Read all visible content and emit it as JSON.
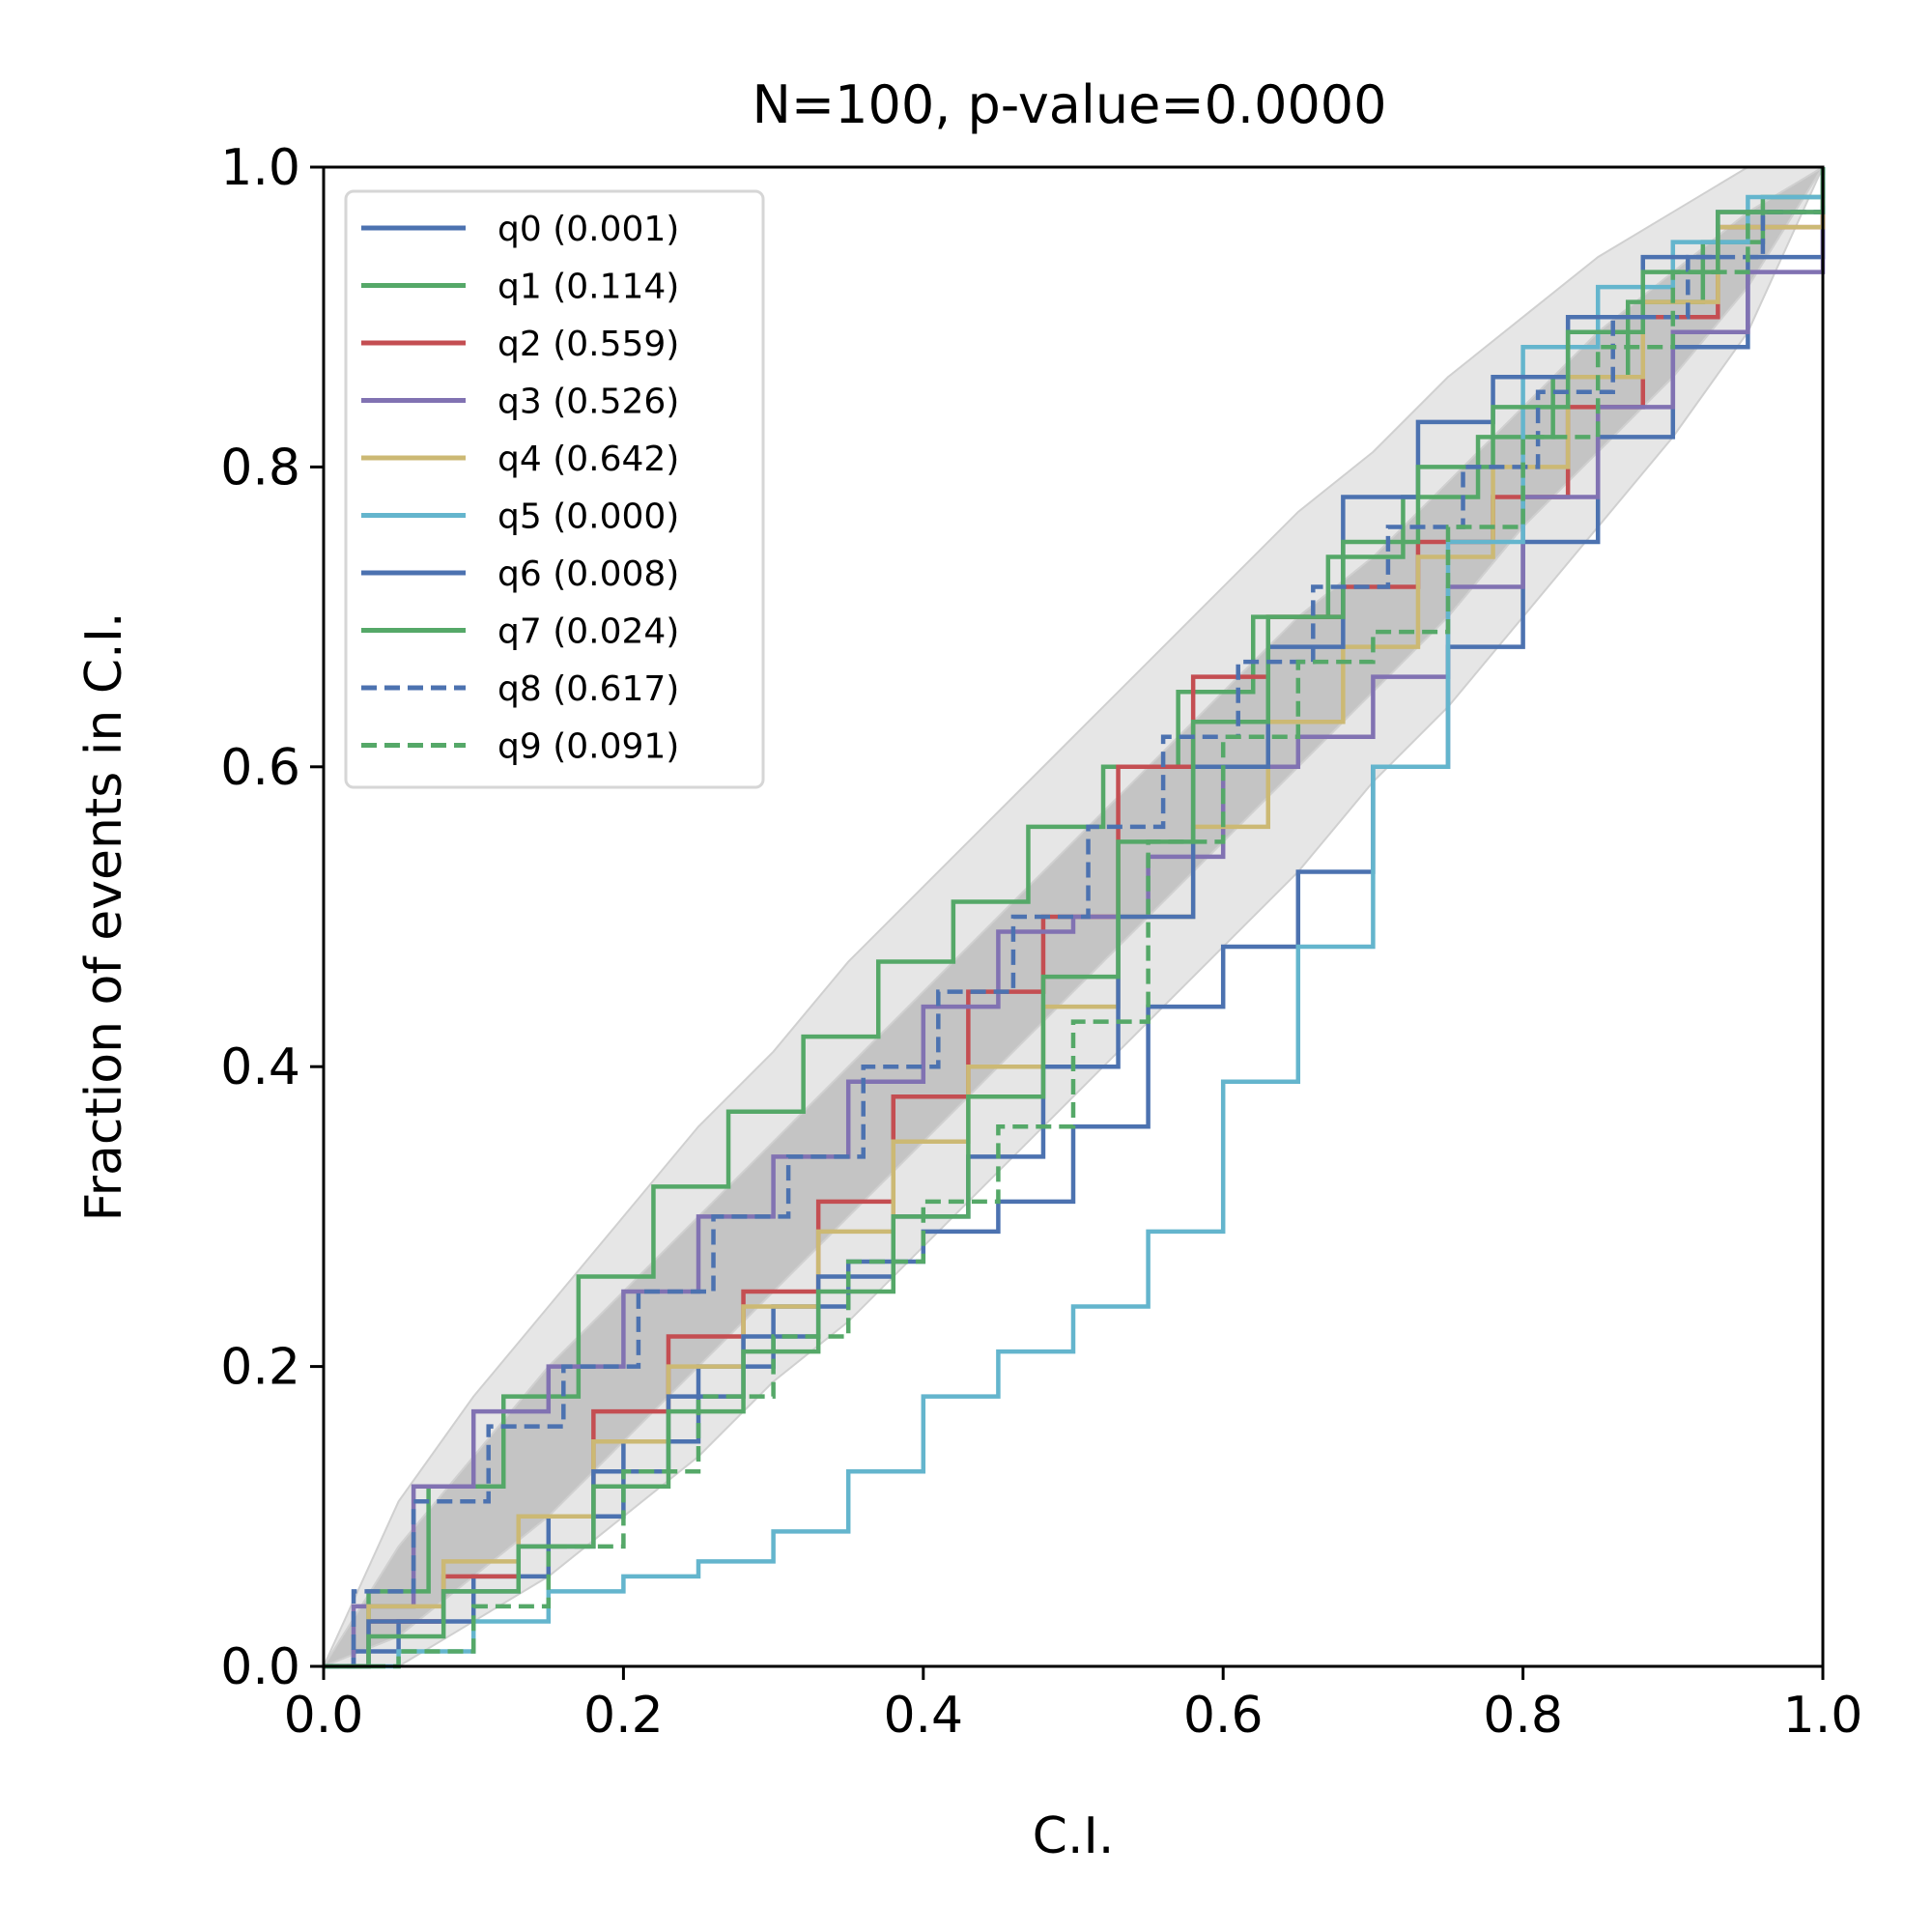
{
  "chart_data": {
    "type": "line",
    "title": "N=100, p-value=0.0000",
    "xlabel": "C.I.",
    "ylabel": "Fraction of events in C.I.",
    "xlim": [
      0.0,
      1.0
    ],
    "ylim": [
      0.0,
      1.0
    ],
    "xticks": [
      "0.0",
      "0.2",
      "0.4",
      "0.6",
      "0.8",
      "1.0"
    ],
    "yticks": [
      "0.0",
      "0.2",
      "0.4",
      "0.6",
      "0.8",
      "1.0"
    ],
    "grid": false,
    "legend_position": "upper-left",
    "confidence_bands": [
      {
        "level": "outer",
        "color": "#e6e6e6",
        "x": [
          0,
          0.05,
          0.1,
          0.15,
          0.2,
          0.25,
          0.3,
          0.35,
          0.4,
          0.45,
          0.5,
          0.55,
          0.6,
          0.65,
          0.7,
          0.75,
          0.8,
          0.85,
          0.9,
          0.95,
          1.0
        ],
        "lower": [
          0,
          0.0,
          0.03,
          0.06,
          0.1,
          0.14,
          0.19,
          0.23,
          0.28,
          0.33,
          0.38,
          0.43,
          0.48,
          0.53,
          0.59,
          0.64,
          0.7,
          0.76,
          0.82,
          0.89,
          1.0
        ],
        "upper": [
          0,
          0.11,
          0.18,
          0.24,
          0.3,
          0.36,
          0.41,
          0.47,
          0.52,
          0.57,
          0.62,
          0.67,
          0.72,
          0.77,
          0.81,
          0.86,
          0.9,
          0.94,
          0.97,
          1.0,
          1.0
        ]
      },
      {
        "level": "inner",
        "color": "#c4c4c4",
        "x": [
          0,
          0.05,
          0.1,
          0.15,
          0.2,
          0.25,
          0.3,
          0.35,
          0.4,
          0.45,
          0.5,
          0.55,
          0.6,
          0.65,
          0.7,
          0.75,
          0.8,
          0.85,
          0.9,
          0.95,
          1.0
        ],
        "lower": [
          0,
          0.02,
          0.06,
          0.1,
          0.15,
          0.2,
          0.25,
          0.3,
          0.35,
          0.4,
          0.45,
          0.5,
          0.55,
          0.6,
          0.65,
          0.7,
          0.76,
          0.81,
          0.86,
          0.92,
          1.0
        ],
        "upper": [
          0,
          0.08,
          0.14,
          0.2,
          0.25,
          0.3,
          0.35,
          0.4,
          0.45,
          0.5,
          0.55,
          0.6,
          0.65,
          0.7,
          0.74,
          0.79,
          0.84,
          0.89,
          0.93,
          0.97,
          1.0
        ]
      }
    ],
    "series": [
      {
        "name": "q0 (0.001)",
        "color": "#4c72b0",
        "dash": false,
        "x": [
          0,
          0.02,
          0.05,
          0.1,
          0.15,
          0.2,
          0.25,
          0.3,
          0.35,
          0.4,
          0.45,
          0.5,
          0.55,
          0.6,
          0.65,
          0.7,
          0.75,
          0.8,
          0.85,
          0.9,
          0.95,
          1.0
        ],
        "y": [
          0,
          0.01,
          0.03,
          0.06,
          0.1,
          0.15,
          0.2,
          0.24,
          0.27,
          0.29,
          0.31,
          0.36,
          0.44,
          0.48,
          0.53,
          0.6,
          0.68,
          0.75,
          0.82,
          0.88,
          0.94,
          1.0
        ]
      },
      {
        "name": "q1 (0.114)",
        "color": "#55a868",
        "dash": false,
        "x": [
          0,
          0.03,
          0.07,
          0.12,
          0.17,
          0.22,
          0.27,
          0.32,
          0.37,
          0.42,
          0.47,
          0.52,
          0.57,
          0.62,
          0.67,
          0.72,
          0.77,
          0.82,
          0.87,
          0.92,
          0.96,
          1.0
        ],
        "y": [
          0,
          0.05,
          0.12,
          0.18,
          0.26,
          0.32,
          0.37,
          0.42,
          0.47,
          0.51,
          0.56,
          0.6,
          0.65,
          0.7,
          0.74,
          0.78,
          0.82,
          0.86,
          0.91,
          0.95,
          0.98,
          1.0
        ]
      },
      {
        "name": "q2 (0.559)",
        "color": "#c44e52",
        "dash": false,
        "x": [
          0,
          0.03,
          0.08,
          0.13,
          0.18,
          0.23,
          0.28,
          0.33,
          0.38,
          0.43,
          0.48,
          0.53,
          0.58,
          0.63,
          0.68,
          0.73,
          0.78,
          0.83,
          0.88,
          0.93,
          1.0
        ],
        "y": [
          0,
          0.03,
          0.06,
          0.1,
          0.17,
          0.22,
          0.25,
          0.31,
          0.38,
          0.45,
          0.5,
          0.6,
          0.66,
          0.7,
          0.72,
          0.75,
          0.78,
          0.84,
          0.9,
          0.96,
          1.0
        ]
      },
      {
        "name": "q3 (0.526)",
        "color": "#8172b2",
        "dash": false,
        "x": [
          0,
          0.02,
          0.06,
          0.1,
          0.15,
          0.2,
          0.25,
          0.3,
          0.35,
          0.4,
          0.45,
          0.5,
          0.55,
          0.6,
          0.65,
          0.7,
          0.75,
          0.8,
          0.85,
          0.9,
          0.95,
          1.0
        ],
        "y": [
          0,
          0.04,
          0.12,
          0.17,
          0.2,
          0.25,
          0.3,
          0.34,
          0.39,
          0.44,
          0.49,
          0.5,
          0.54,
          0.6,
          0.62,
          0.66,
          0.72,
          0.78,
          0.84,
          0.89,
          0.93,
          1.0
        ]
      },
      {
        "name": "q4 (0.642)",
        "color": "#ccb974",
        "dash": false,
        "x": [
          0,
          0.03,
          0.08,
          0.13,
          0.18,
          0.23,
          0.28,
          0.33,
          0.38,
          0.43,
          0.48,
          0.53,
          0.58,
          0.63,
          0.68,
          0.73,
          0.78,
          0.83,
          0.88,
          0.93,
          1.0
        ],
        "y": [
          0,
          0.04,
          0.07,
          0.1,
          0.15,
          0.2,
          0.24,
          0.29,
          0.35,
          0.4,
          0.44,
          0.5,
          0.56,
          0.63,
          0.68,
          0.74,
          0.8,
          0.86,
          0.91,
          0.96,
          1.0
        ]
      },
      {
        "name": "q5 (0.000)",
        "color": "#64b5cd",
        "dash": false,
        "x": [
          0,
          0.05,
          0.1,
          0.15,
          0.2,
          0.25,
          0.3,
          0.35,
          0.4,
          0.45,
          0.5,
          0.55,
          0.6,
          0.65,
          0.7,
          0.75,
          0.8,
          0.85,
          0.9,
          0.95,
          1.0
        ],
        "y": [
          0,
          0.01,
          0.03,
          0.05,
          0.06,
          0.07,
          0.09,
          0.13,
          0.18,
          0.21,
          0.24,
          0.29,
          0.39,
          0.48,
          0.6,
          0.75,
          0.88,
          0.92,
          0.95,
          0.98,
          1.0
        ]
      },
      {
        "name": "q6 (0.008)",
        "color": "#4c72b0",
        "dash": false,
        "x": [
          0,
          0.03,
          0.08,
          0.13,
          0.18,
          0.23,
          0.28,
          0.33,
          0.38,
          0.43,
          0.48,
          0.53,
          0.58,
          0.63,
          0.68,
          0.73,
          0.78,
          0.83,
          0.88,
          0.93,
          1.0
        ],
        "y": [
          0,
          0.03,
          0.05,
          0.08,
          0.13,
          0.18,
          0.22,
          0.26,
          0.3,
          0.34,
          0.4,
          0.5,
          0.6,
          0.68,
          0.78,
          0.83,
          0.86,
          0.9,
          0.94,
          0.97,
          1.0
        ]
      },
      {
        "name": "q7 (0.024)",
        "color": "#55a868",
        "dash": false,
        "x": [
          0,
          0.03,
          0.08,
          0.13,
          0.18,
          0.23,
          0.28,
          0.33,
          0.38,
          0.43,
          0.48,
          0.53,
          0.58,
          0.63,
          0.68,
          0.73,
          0.78,
          0.83,
          0.88,
          0.93,
          1.0
        ],
        "y": [
          0,
          0.02,
          0.05,
          0.08,
          0.12,
          0.17,
          0.21,
          0.25,
          0.3,
          0.38,
          0.46,
          0.55,
          0.63,
          0.7,
          0.75,
          0.8,
          0.84,
          0.89,
          0.93,
          0.97,
          1.0
        ]
      },
      {
        "name": "q8 (0.617)",
        "color": "#4c72b0",
        "dash": true,
        "x": [
          0,
          0.02,
          0.06,
          0.11,
          0.16,
          0.21,
          0.26,
          0.31,
          0.36,
          0.41,
          0.46,
          0.51,
          0.56,
          0.61,
          0.66,
          0.71,
          0.76,
          0.81,
          0.86,
          0.91,
          0.96,
          1.0
        ],
        "y": [
          0,
          0.05,
          0.11,
          0.16,
          0.2,
          0.25,
          0.3,
          0.34,
          0.4,
          0.45,
          0.5,
          0.56,
          0.62,
          0.67,
          0.72,
          0.76,
          0.8,
          0.85,
          0.9,
          0.94,
          0.97,
          1.0
        ]
      },
      {
        "name": "q9 (0.091)",
        "color": "#55a868",
        "dash": true,
        "x": [
          0,
          0.05,
          0.1,
          0.15,
          0.2,
          0.25,
          0.3,
          0.35,
          0.4,
          0.45,
          0.5,
          0.55,
          0.6,
          0.65,
          0.7,
          0.75,
          0.8,
          0.85,
          0.9,
          0.95,
          1.0
        ],
        "y": [
          0,
          0.01,
          0.04,
          0.08,
          0.13,
          0.18,
          0.22,
          0.27,
          0.31,
          0.36,
          0.43,
          0.55,
          0.62,
          0.67,
          0.69,
          0.76,
          0.82,
          0.88,
          0.93,
          0.97,
          1.0
        ]
      }
    ]
  }
}
